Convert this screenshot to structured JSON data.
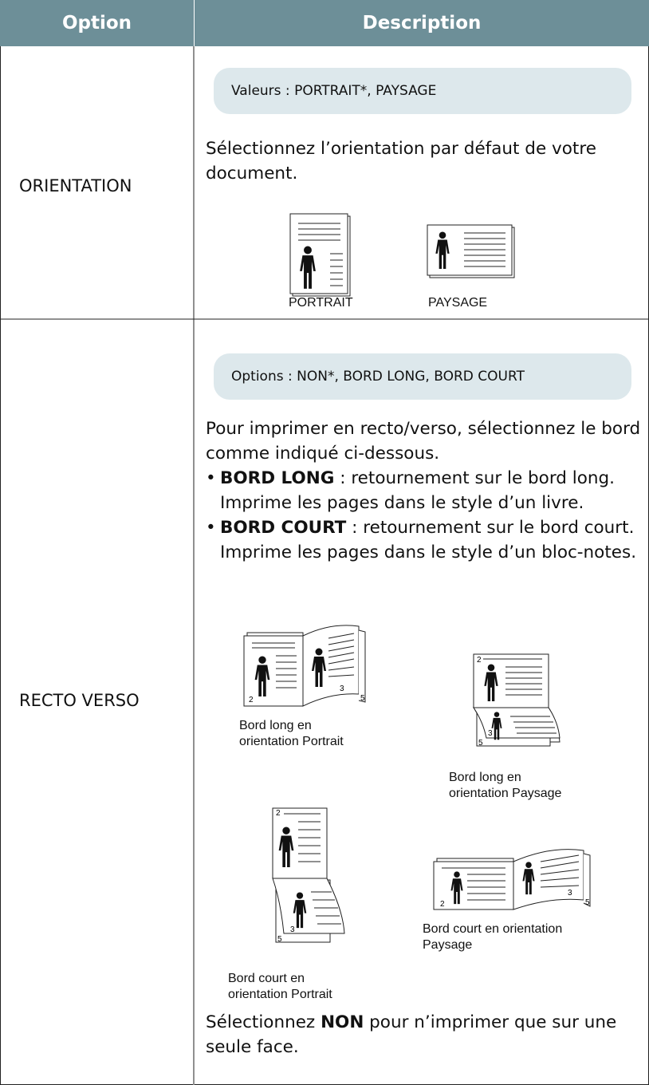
{
  "header": {
    "option": "Option",
    "description": "Description"
  },
  "rows": [
    {
      "option": "ORIENTATION",
      "note": "Valeurs : PORTRAIT*, PAYSAGE",
      "text": "Sélectionnez l’orientation par défaut de votre document.",
      "figures": [
        {
          "caption": "PORTRAIT"
        },
        {
          "caption": "PAYSAGE"
        }
      ]
    },
    {
      "option": "RECTO VERSO",
      "note": "Options : NON*, BORD LONG, BORD COURT",
      "text": "Pour imprimer en recto/verso, sélectionnez le bord comme indiqué ci-dessous.",
      "bullets": [
        {
          "term": "BORD LONG",
          "text": " : retournement sur le bord long. Imprime les pages dans le style d’un livre."
        },
        {
          "term": "BORD COURT",
          "text": " : retournement sur le bord court. Imprime les pages dans le style d’un bloc-notes."
        }
      ],
      "figures": [
        {
          "caption": "Bord long en\norientation Portrait",
          "pages": [
            "2",
            "3",
            "5"
          ]
        },
        {
          "caption": "Bord long en\norientation Paysage",
          "pages": [
            "2",
            "3",
            "5"
          ]
        },
        {
          "caption": "Bord court en\norientation Portrait",
          "pages": [
            "2",
            "3",
            "5"
          ]
        },
        {
          "caption": "Bord court en orientation\nPaysage",
          "pages": [
            "2",
            "3",
            "5"
          ]
        }
      ],
      "footer": {
        "before": "Sélectionnez ",
        "strong": "NON",
        "after": " pour n’imprimer que sur une seule face."
      }
    }
  ]
}
